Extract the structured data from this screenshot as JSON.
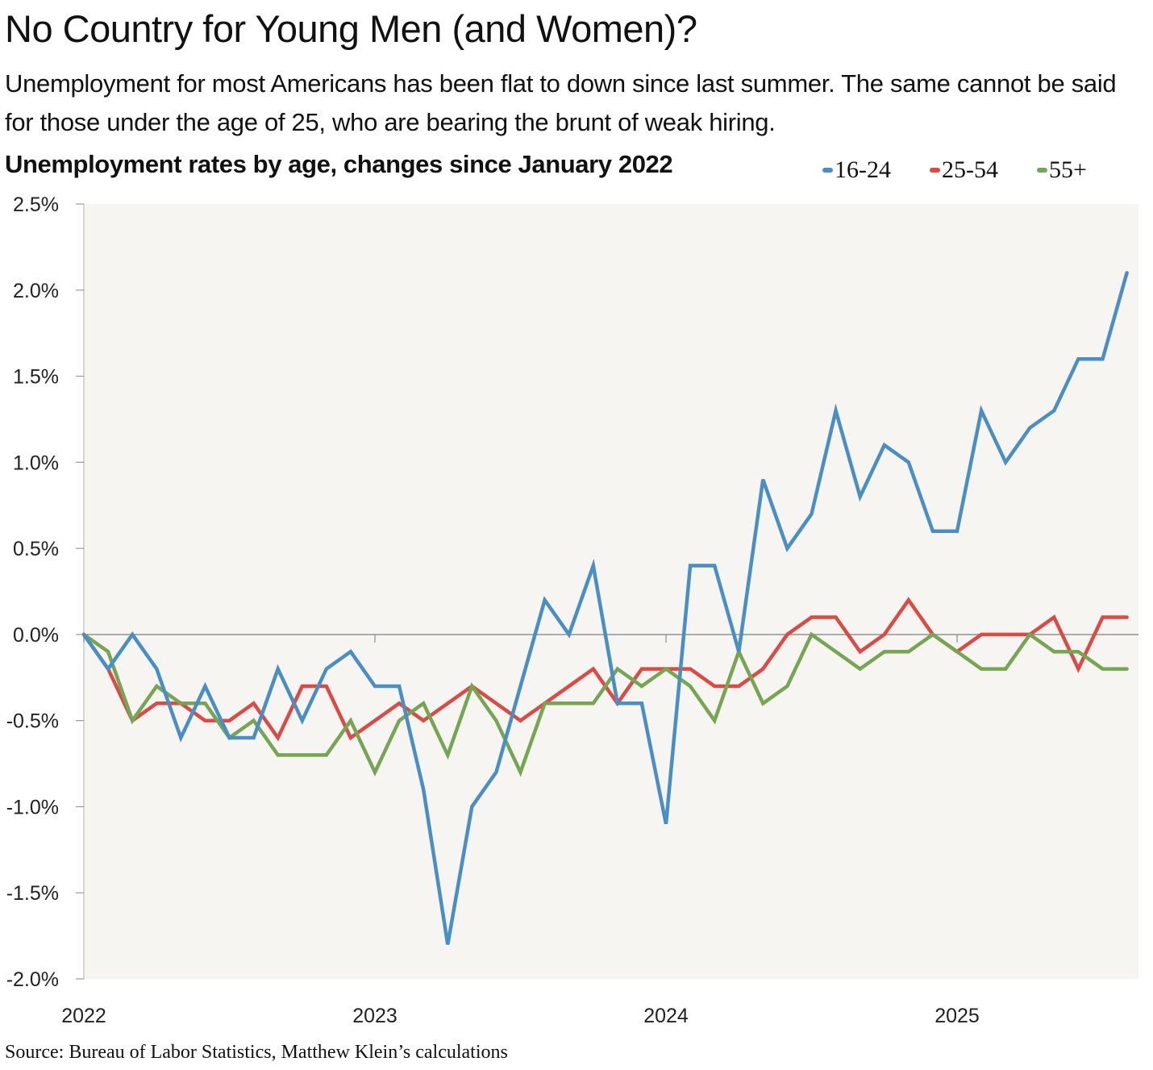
{
  "header": {
    "title": "No Country for Young Men (and Women)?",
    "subtitle": "Unemployment for most Americans has been flat to down since last summer. The same cannot be said for those under the age of 25, who are bearing the brunt of weak hiring."
  },
  "footer": {
    "source": "Source: Bureau of Labor Statistics, Matthew Klein’s calculations"
  },
  "chart_data": {
    "type": "line",
    "title": "Unemployment rates by age, changes since January 2022",
    "xlabel": "",
    "ylabel": "",
    "x_start": "2022-01",
    "x_frequency": "monthly",
    "x_ticks": [
      "2022",
      "2023",
      "2024",
      "2025"
    ],
    "y_ticks": [
      "2.5%",
      "2.0%",
      "1.5%",
      "1.0%",
      "0.5%",
      "0.0%",
      "-0.5%",
      "-1.0%",
      "-1.5%",
      "-2.0%"
    ],
    "ylim": [
      -2.0,
      2.5
    ],
    "unit": "percentage points",
    "grid": false,
    "legend_position": "top-right",
    "background": "#f6f5f2",
    "series": [
      {
        "name": "16-24",
        "color": "#4a8fc4",
        "values": [
          0.0,
          -0.2,
          0.0,
          -0.2,
          -0.6,
          -0.3,
          -0.6,
          -0.6,
          -0.2,
          -0.5,
          -0.2,
          -0.1,
          -0.3,
          -0.3,
          -0.9,
          -1.8,
          -1.0,
          -0.8,
          -0.3,
          0.2,
          0.0,
          0.4,
          -0.4,
          -0.4,
          -1.1,
          0.4,
          0.4,
          -0.1,
          0.9,
          0.5,
          0.7,
          1.3,
          0.8,
          1.1,
          1.0,
          0.6,
          0.6,
          1.3,
          1.0,
          1.2,
          1.3,
          1.6,
          1.6,
          2.1
        ]
      },
      {
        "name": "25-54",
        "color": "#dc4a46",
        "values": [
          0.0,
          -0.2,
          -0.5,
          -0.4,
          -0.4,
          -0.5,
          -0.5,
          -0.4,
          -0.6,
          -0.3,
          -0.3,
          -0.6,
          -0.5,
          -0.4,
          -0.5,
          -0.4,
          -0.3,
          -0.4,
          -0.5,
          -0.4,
          -0.3,
          -0.2,
          -0.4,
          -0.2,
          -0.2,
          -0.2,
          -0.3,
          -0.3,
          -0.2,
          0.0,
          0.1,
          0.1,
          -0.1,
          0.0,
          0.2,
          0.0,
          -0.1,
          0.0,
          0.0,
          0.0,
          0.1,
          -0.2,
          0.1,
          0.1
        ]
      },
      {
        "name": "55+",
        "color": "#76a653",
        "values": [
          0.0,
          -0.1,
          -0.5,
          -0.3,
          -0.4,
          -0.4,
          -0.6,
          -0.5,
          -0.7,
          -0.7,
          -0.7,
          -0.5,
          -0.8,
          -0.5,
          -0.4,
          -0.7,
          -0.3,
          -0.5,
          -0.8,
          -0.4,
          -0.4,
          -0.4,
          -0.2,
          -0.3,
          -0.2,
          -0.3,
          -0.5,
          -0.1,
          -0.4,
          -0.3,
          0.0,
          -0.1,
          -0.2,
          -0.1,
          -0.1,
          0.0,
          -0.1,
          -0.2,
          -0.2,
          0.0,
          -0.1,
          -0.1,
          -0.2,
          -0.2
        ]
      }
    ]
  }
}
